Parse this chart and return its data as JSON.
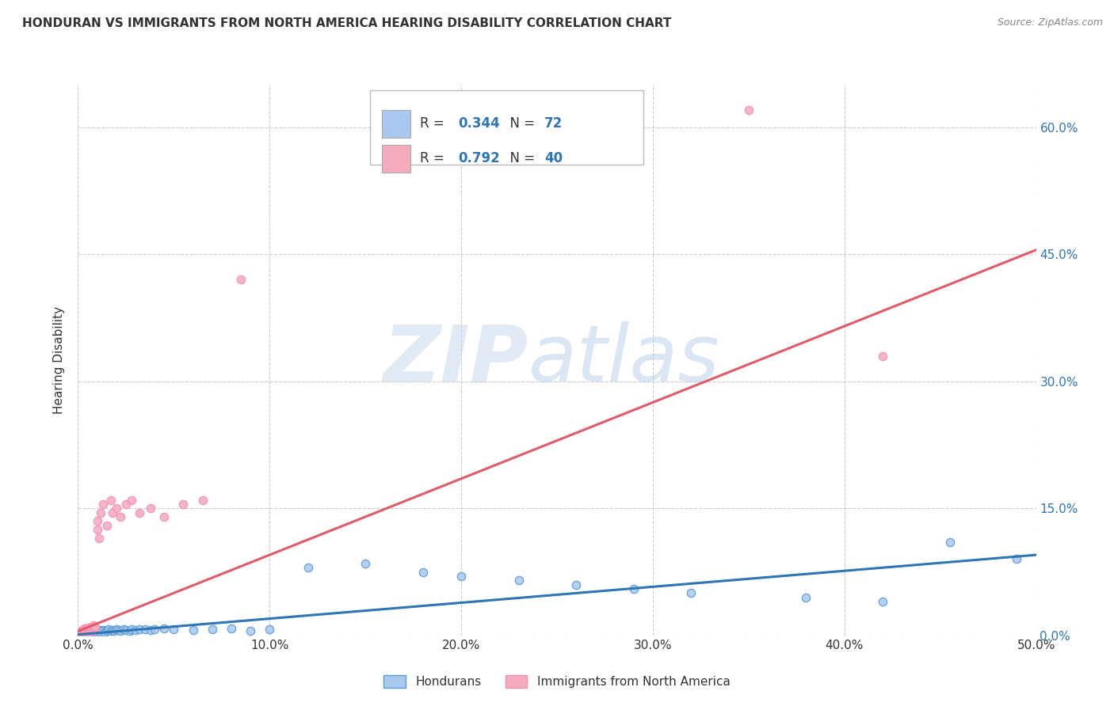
{
  "title": "HONDURAN VS IMMIGRANTS FROM NORTH AMERICA HEARING DISABILITY CORRELATION CHART",
  "source": "Source: ZipAtlas.com",
  "xlim": [
    0.0,
    0.5
  ],
  "ylim": [
    0.0,
    0.65
  ],
  "ylabel": "Hearing Disability",
  "blue_R": 0.344,
  "blue_N": 72,
  "pink_R": 0.792,
  "pink_N": 40,
  "blue_color": "#A8C8F0",
  "pink_color": "#F4ABBE",
  "blue_edge_color": "#5B9BD5",
  "pink_edge_color": "#F48FB1",
  "blue_line_color": "#2E75B6",
  "pink_line_color": "#E05A6A",
  "text_color": "#333333",
  "blue_label_color": "#2E75B6",
  "legend_label_blue": "Hondurans",
  "legend_label_pink": "Immigrants from North America",
  "watermark_zip": "ZIP",
  "watermark_atlas": "atlas",
  "grid_color": "#CCCCCC",
  "blue_scatter_x": [
    0.001,
    0.001,
    0.002,
    0.002,
    0.002,
    0.003,
    0.003,
    0.003,
    0.003,
    0.004,
    0.004,
    0.004,
    0.005,
    0.005,
    0.005,
    0.005,
    0.006,
    0.006,
    0.006,
    0.007,
    0.007,
    0.007,
    0.008,
    0.008,
    0.008,
    0.009,
    0.009,
    0.01,
    0.01,
    0.011,
    0.012,
    0.012,
    0.013,
    0.013,
    0.014,
    0.015,
    0.015,
    0.016,
    0.017,
    0.018,
    0.019,
    0.02,
    0.021,
    0.022,
    0.024,
    0.025,
    0.027,
    0.028,
    0.03,
    0.032,
    0.035,
    0.038,
    0.04,
    0.045,
    0.05,
    0.06,
    0.07,
    0.08,
    0.09,
    0.1,
    0.12,
    0.15,
    0.18,
    0.2,
    0.23,
    0.26,
    0.29,
    0.32,
    0.38,
    0.42,
    0.455,
    0.49
  ],
  "blue_scatter_y": [
    0.004,
    0.002,
    0.003,
    0.005,
    0.001,
    0.003,
    0.004,
    0.002,
    0.006,
    0.003,
    0.004,
    0.002,
    0.003,
    0.005,
    0.002,
    0.004,
    0.003,
    0.005,
    0.002,
    0.004,
    0.003,
    0.006,
    0.004,
    0.003,
    0.005,
    0.004,
    0.003,
    0.005,
    0.004,
    0.006,
    0.005,
    0.004,
    0.006,
    0.005,
    0.004,
    0.006,
    0.005,
    0.007,
    0.005,
    0.006,
    0.005,
    0.007,
    0.006,
    0.005,
    0.007,
    0.006,
    0.005,
    0.007,
    0.006,
    0.007,
    0.007,
    0.006,
    0.007,
    0.008,
    0.007,
    0.006,
    0.007,
    0.008,
    0.005,
    0.007,
    0.08,
    0.085,
    0.075,
    0.07,
    0.065,
    0.06,
    0.055,
    0.05,
    0.045,
    0.04,
    0.11,
    0.09
  ],
  "pink_scatter_x": [
    0.001,
    0.001,
    0.002,
    0.002,
    0.003,
    0.003,
    0.003,
    0.004,
    0.004,
    0.004,
    0.005,
    0.005,
    0.006,
    0.006,
    0.007,
    0.007,
    0.008,
    0.008,
    0.009,
    0.009,
    0.01,
    0.01,
    0.011,
    0.012,
    0.013,
    0.015,
    0.017,
    0.018,
    0.02,
    0.022,
    0.025,
    0.028,
    0.032,
    0.038,
    0.045,
    0.055,
    0.065,
    0.085,
    0.35,
    0.42
  ],
  "pink_scatter_y": [
    0.004,
    0.002,
    0.003,
    0.005,
    0.004,
    0.006,
    0.008,
    0.005,
    0.007,
    0.003,
    0.006,
    0.009,
    0.007,
    0.004,
    0.008,
    0.01,
    0.006,
    0.012,
    0.008,
    0.01,
    0.135,
    0.125,
    0.115,
    0.145,
    0.155,
    0.13,
    0.16,
    0.145,
    0.15,
    0.14,
    0.155,
    0.16,
    0.145,
    0.15,
    0.14,
    0.155,
    0.16,
    0.42,
    0.62,
    0.33
  ],
  "blue_line_x": [
    0.0,
    0.5
  ],
  "blue_line_y": [
    0.001,
    0.095
  ],
  "pink_line_x": [
    0.0,
    0.5
  ],
  "pink_line_y": [
    0.005,
    0.455
  ]
}
